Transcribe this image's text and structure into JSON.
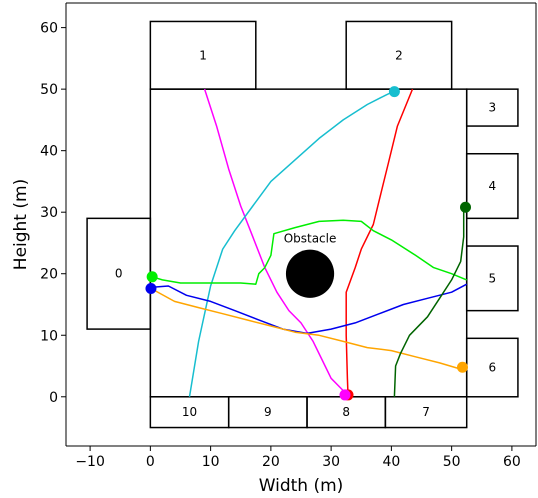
{
  "chart_data": {
    "type": "line",
    "title": "",
    "xlabel": "Width (m)",
    "ylabel": "Height (m)",
    "xlim": [
      -14,
      64
    ],
    "ylim": [
      -8,
      64
    ],
    "xticks": [
      -10,
      0,
      10,
      20,
      30,
      40,
      50,
      60
    ],
    "yticks": [
      0,
      10,
      20,
      30,
      40,
      50,
      60
    ],
    "xtick_labels": [
      "−10",
      "0",
      "10",
      "20",
      "30",
      "40",
      "50",
      "60"
    ],
    "ytick_labels": [
      "0",
      "10",
      "20",
      "30",
      "40",
      "50",
      "60"
    ],
    "grid": false,
    "legend": "none",
    "room": {
      "x": [
        0,
        52.5
      ],
      "y": [
        0,
        50
      ]
    },
    "obstacle": {
      "label": "Obstacle",
      "cx": 26.5,
      "cy": 20,
      "r": 4
    },
    "boxes": [
      {
        "label": "0",
        "x0": -10.5,
        "x1": 0,
        "y0": 11,
        "y1": 29
      },
      {
        "label": "1",
        "x0": 0,
        "x1": 17.5,
        "y0": 50,
        "y1": 61
      },
      {
        "label": "2",
        "x0": 32.5,
        "x1": 50,
        "y0": 50,
        "y1": 61
      },
      {
        "label": "3",
        "x0": 52.5,
        "x1": 61,
        "y0": 44,
        "y1": 50
      },
      {
        "label": "4",
        "x0": 52.5,
        "x1": 61,
        "y0": 29,
        "y1": 39.5
      },
      {
        "label": "5",
        "x0": 52.5,
        "x1": 61,
        "y0": 14,
        "y1": 24.5
      },
      {
        "label": "6",
        "x0": 52.5,
        "x1": 61,
        "y0": 0,
        "y1": 9.5
      },
      {
        "label": "7",
        "x0": 39,
        "x1": 52.5,
        "y0": -5,
        "y1": 0
      },
      {
        "label": "8",
        "x0": 26,
        "x1": 39,
        "y0": -5,
        "y1": 0
      },
      {
        "label": "9",
        "x0": 13,
        "x1": 26,
        "y0": -5,
        "y1": 0
      },
      {
        "label": "10",
        "x0": 0,
        "x1": 13,
        "y0": -5,
        "y1": 0
      }
    ],
    "series": [
      {
        "color": "#ff00ff",
        "points": [
          [
            9,
            50
          ],
          [
            11,
            44
          ],
          [
            13,
            37
          ],
          [
            15,
            31
          ],
          [
            17,
            26
          ],
          [
            19,
            21
          ],
          [
            21,
            17
          ],
          [
            23,
            14
          ],
          [
            25,
            12
          ],
          [
            27,
            9
          ],
          [
            29,
            5
          ],
          [
            30,
            3
          ],
          [
            31,
            2
          ],
          [
            32,
            1
          ],
          [
            32.5,
            0.3
          ]
        ]
      },
      {
        "color": "#17becf",
        "points": [
          [
            6.5,
            0
          ],
          [
            8,
            9
          ],
          [
            10,
            18
          ],
          [
            12,
            24
          ],
          [
            14,
            27
          ],
          [
            17,
            31
          ],
          [
            20,
            35
          ],
          [
            24,
            38.5
          ],
          [
            28,
            42
          ],
          [
            32,
            45
          ],
          [
            36,
            47.5
          ],
          [
            39,
            49
          ],
          [
            40.5,
            49.7
          ]
        ]
      },
      {
        "color": "#ff0000",
        "points": [
          [
            43.5,
            50
          ],
          [
            41,
            44
          ],
          [
            39.5,
            38
          ],
          [
            38,
            32
          ],
          [
            37,
            28
          ],
          [
            35,
            24
          ],
          [
            34,
            21
          ],
          [
            32.5,
            17
          ],
          [
            32.5,
            10
          ],
          [
            32.7,
            3
          ],
          [
            32.8,
            0.3
          ]
        ]
      },
      {
        "color": "#00ee00",
        "points": [
          [
            0.3,
            19.5
          ],
          [
            2,
            19
          ],
          [
            5,
            18.5
          ],
          [
            10,
            18.5
          ],
          [
            15,
            18.5
          ],
          [
            17.5,
            18.3
          ],
          [
            18,
            20
          ],
          [
            19,
            21
          ],
          [
            20,
            23
          ],
          [
            20.5,
            26.5
          ],
          [
            24,
            27.5
          ],
          [
            28,
            28.5
          ],
          [
            32,
            28.7
          ],
          [
            35,
            28.5
          ],
          [
            37,
            27
          ],
          [
            40,
            25.5
          ],
          [
            44,
            23
          ],
          [
            47,
            21
          ],
          [
            50,
            20
          ],
          [
            52.5,
            19
          ]
        ]
      },
      {
        "color": "#0000ee",
        "points": [
          [
            0.3,
            17.8
          ],
          [
            3,
            18
          ],
          [
            6,
            16.5
          ],
          [
            10,
            15.5
          ],
          [
            14,
            14
          ],
          [
            18,
            12.5
          ],
          [
            22,
            11
          ],
          [
            26,
            10.3
          ],
          [
            30,
            11
          ],
          [
            34,
            12
          ],
          [
            38,
            13.5
          ],
          [
            42,
            15
          ],
          [
            46,
            16
          ],
          [
            50,
            17
          ],
          [
            52.5,
            18.3
          ]
        ]
      },
      {
        "color": "#ffa500",
        "points": [
          [
            0.3,
            17.5
          ],
          [
            4,
            15.5
          ],
          [
            8,
            14.5
          ],
          [
            12,
            13.5
          ],
          [
            16,
            12.5
          ],
          [
            20,
            11.5
          ],
          [
            24,
            10.5
          ],
          [
            28,
            10
          ],
          [
            32,
            9
          ],
          [
            36,
            8
          ],
          [
            40,
            7.5
          ],
          [
            44,
            6.5
          ],
          [
            48,
            5.5
          ],
          [
            51.5,
            4.5
          ]
        ]
      },
      {
        "color": "#006400",
        "points": [
          [
            40.5,
            0
          ],
          [
            40.7,
            5
          ],
          [
            41.5,
            7
          ],
          [
            43,
            10
          ],
          [
            46,
            13
          ],
          [
            48,
            16
          ],
          [
            50,
            19
          ],
          [
            51.5,
            22
          ],
          [
            52,
            26
          ],
          [
            52,
            30.5
          ]
        ]
      }
    ],
    "markers": [
      {
        "color": "#00ee00",
        "x": 0.3,
        "y": 19.5
      },
      {
        "color": "#0000ee",
        "x": 0.1,
        "y": 17.6
      },
      {
        "color": "#17becf",
        "x": 40.5,
        "y": 49.6
      },
      {
        "color": "#006400",
        "x": 52.3,
        "y": 30.8
      },
      {
        "color": "#ffa500",
        "x": 51.8,
        "y": 4.8
      },
      {
        "color": "#ff0000",
        "x": 32.8,
        "y": 0.3
      },
      {
        "color": "#ff00ff",
        "x": 32.3,
        "y": 0.3
      }
    ]
  }
}
